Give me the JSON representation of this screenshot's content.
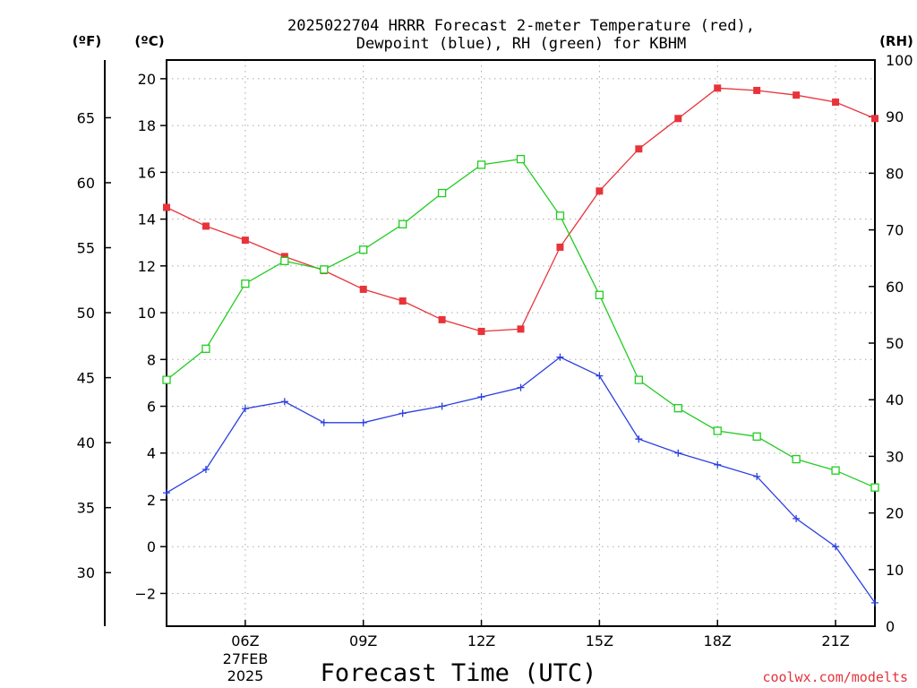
{
  "chart_data": {
    "type": "line",
    "title_lines": [
      "2025022704 HRRR Forecast 2-meter Temperature (red),",
      "Dewpoint (blue), RH (green) for KBHM"
    ],
    "xlabel": "Forecast Time (UTC)",
    "x_ticks": [
      {
        "hour": 6,
        "label": "06Z"
      },
      {
        "hour": 9,
        "label": "09Z"
      },
      {
        "hour": 12,
        "label": "12Z"
      },
      {
        "hour": 15,
        "label": "15Z"
      },
      {
        "hour": 18,
        "label": "18Z"
      },
      {
        "hour": 21,
        "label": "21Z"
      }
    ],
    "date_label": [
      "27FEB",
      "2025"
    ],
    "xlim": [
      4,
      22
    ],
    "left_axis_c": {
      "label": "(ºC)",
      "ticks": [
        -2,
        0,
        2,
        4,
        6,
        8,
        10,
        12,
        14,
        16,
        18,
        20
      ],
      "ylim": [
        -3.4,
        20.8
      ]
    },
    "left_axis_f": {
      "label": "(ºF)",
      "ticks": [
        30,
        35,
        40,
        45,
        50,
        55,
        60,
        65
      ]
    },
    "right_axis_rh": {
      "label": "(RH)",
      "ticks": [
        0,
        10,
        20,
        30,
        40,
        50,
        60,
        70,
        80,
        90,
        100
      ],
      "ylim": [
        0,
        100
      ]
    },
    "x": [
      4,
      5,
      6,
      7,
      8,
      9,
      10,
      11,
      12,
      13,
      14,
      15,
      16,
      17,
      18,
      19,
      20,
      21,
      22
    ],
    "series": [
      {
        "key": "temperature_c",
        "color": "#e8333a",
        "marker": "square-filled",
        "axis": "c",
        "values": [
          14.5,
          13.7,
          13.1,
          12.4,
          11.8,
          11.0,
          10.5,
          9.7,
          9.2,
          9.3,
          12.8,
          15.2,
          17.0,
          18.3,
          19.6,
          19.5,
          19.3,
          19.0,
          18.3
        ]
      },
      {
        "key": "dewpoint_c",
        "color": "#2b3fe0",
        "marker": "plus",
        "axis": "c",
        "values": [
          2.3,
          3.3,
          5.9,
          6.2,
          5.3,
          5.3,
          5.7,
          6.0,
          6.4,
          6.8,
          8.1,
          7.3,
          4.6,
          4.0,
          3.5,
          3.0,
          1.2,
          0.0,
          -2.4
        ]
      },
      {
        "key": "rh_pct",
        "color": "#22cc22",
        "marker": "square-open",
        "axis": "rh",
        "values": [
          43.5,
          49,
          60.5,
          64.5,
          63,
          66.5,
          71,
          76.5,
          81.5,
          82.5,
          72.5,
          58.5,
          43.5,
          38.5,
          34.5,
          33.5,
          29.5,
          27.5,
          24.5
        ]
      }
    ],
    "grid": true
  },
  "credit": "coolwx.com/modelts"
}
